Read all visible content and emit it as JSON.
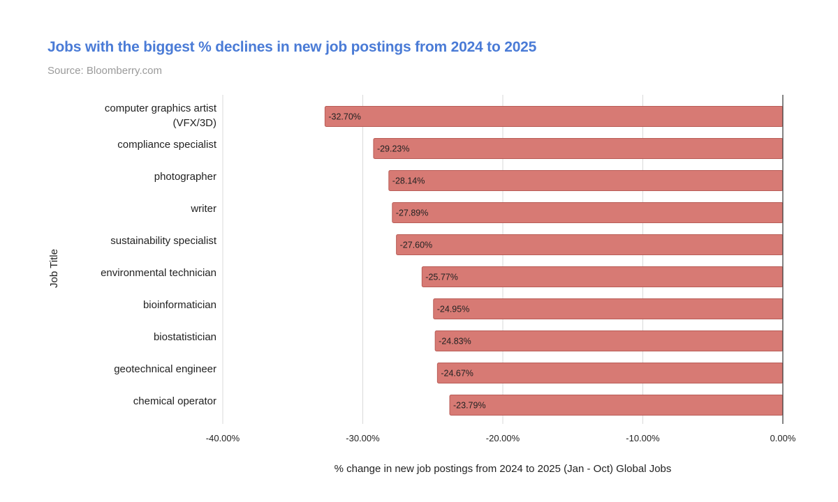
{
  "header": {
    "title": "Jobs with the biggest % declines in new job postings from 2024 to 2025",
    "subtitle": "Source: Bloomberry.com"
  },
  "colors": {
    "title": "#4a7bd6",
    "subtitle": "#9a9a9a",
    "bar": "#d77a74",
    "bar_stroke": "#b85c56",
    "grid": "#d9d9d9",
    "zero_line": "#333333"
  },
  "chart_data": {
    "type": "bar",
    "orientation": "horizontal",
    "title": "Jobs with the biggest % declines in new job postings from 2024 to 2025",
    "subtitle": "Source: Bloomberry.com",
    "xlabel": "% change in new job postings from 2024 to 2025 (Jan - Oct) Global Jobs",
    "ylabel": "Job Title",
    "xlim": [
      -40,
      0
    ],
    "xticks": [
      -40,
      -30,
      -20,
      -10,
      0
    ],
    "xtick_labels": [
      "-40.00%",
      "-30.00%",
      "-20.00%",
      "-10.00%",
      "0.00%"
    ],
    "grid": true,
    "legend": "none",
    "categories": [
      [
        "computer graphics artist",
        "(VFX/3D)"
      ],
      [
        "compliance specialist"
      ],
      [
        "photographer"
      ],
      [
        "writer"
      ],
      [
        "sustainability specialist"
      ],
      [
        "environmental technician"
      ],
      [
        "bioinformatician"
      ],
      [
        "biostatistician"
      ],
      [
        "geotechnical engineer"
      ],
      [
        "chemical operator"
      ]
    ],
    "values": [
      -32.7,
      -29.23,
      -28.14,
      -27.89,
      -27.6,
      -25.77,
      -24.95,
      -24.83,
      -24.67,
      -23.79
    ],
    "value_labels": [
      "-32.70%",
      "-29.23%",
      "-28.14%",
      "-27.89%",
      "-27.60%",
      "-25.77%",
      "-24.95%",
      "-24.83%",
      "-24.67%",
      "-23.79%"
    ]
  }
}
